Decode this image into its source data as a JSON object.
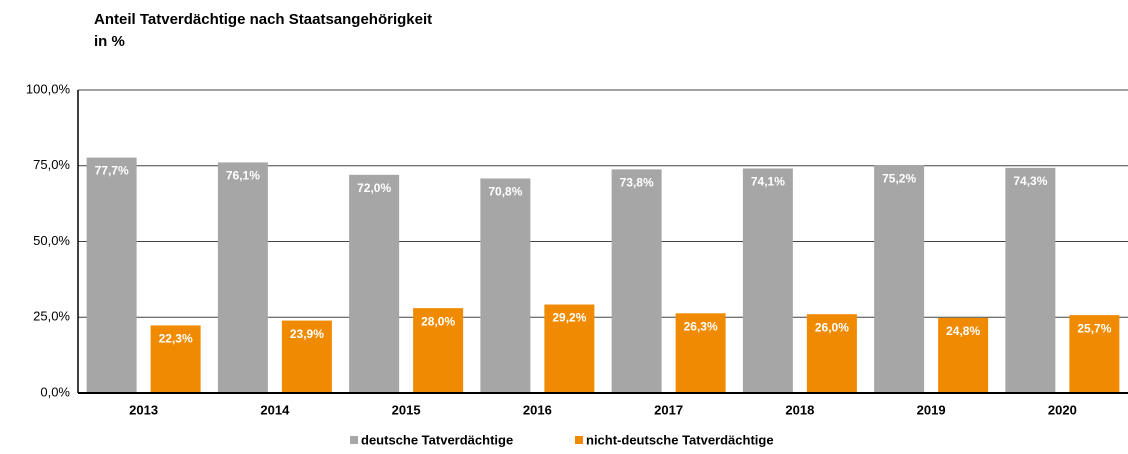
{
  "chart_data": {
    "type": "bar",
    "title": "Anteil Tatverdächtige nach Staatsangehörigkeit",
    "subtitle": "in %",
    "categories": [
      "2013",
      "2014",
      "2015",
      "2016",
      "2017",
      "2018",
      "2019",
      "2020"
    ],
    "series": [
      {
        "name": "deutsche Tatverdächtige",
        "color": "#a6a6a6",
        "values": [
          77.7,
          76.1,
          72.0,
          70.8,
          73.8,
          74.1,
          75.2,
          74.3
        ],
        "value_labels": [
          "77,7%",
          "76,1%",
          "72,0%",
          "70,8%",
          "73,8%",
          "74,1%",
          "75,2%",
          "74,3%"
        ]
      },
      {
        "name": "nicht-deutsche Tatverdächtige",
        "color": "#f08a00",
        "values": [
          22.3,
          23.9,
          28.0,
          29.2,
          26.3,
          26.0,
          24.8,
          25.7
        ],
        "value_labels": [
          "22,3%",
          "23,9%",
          "28,0%",
          "29,2%",
          "26,3%",
          "26,0%",
          "24,8%",
          "25,7%"
        ]
      }
    ],
    "ylim": [
      0,
      100
    ],
    "yticks": [
      {
        "value": 0,
        "label": "0,0%"
      },
      {
        "value": 25,
        "label": "25,0%"
      },
      {
        "value": 50,
        "label": "50,0%"
      },
      {
        "value": 75,
        "label": "75,0%"
      },
      {
        "value": 100,
        "label": "100,0%"
      }
    ],
    "grid": true,
    "legend": "bottom"
  }
}
